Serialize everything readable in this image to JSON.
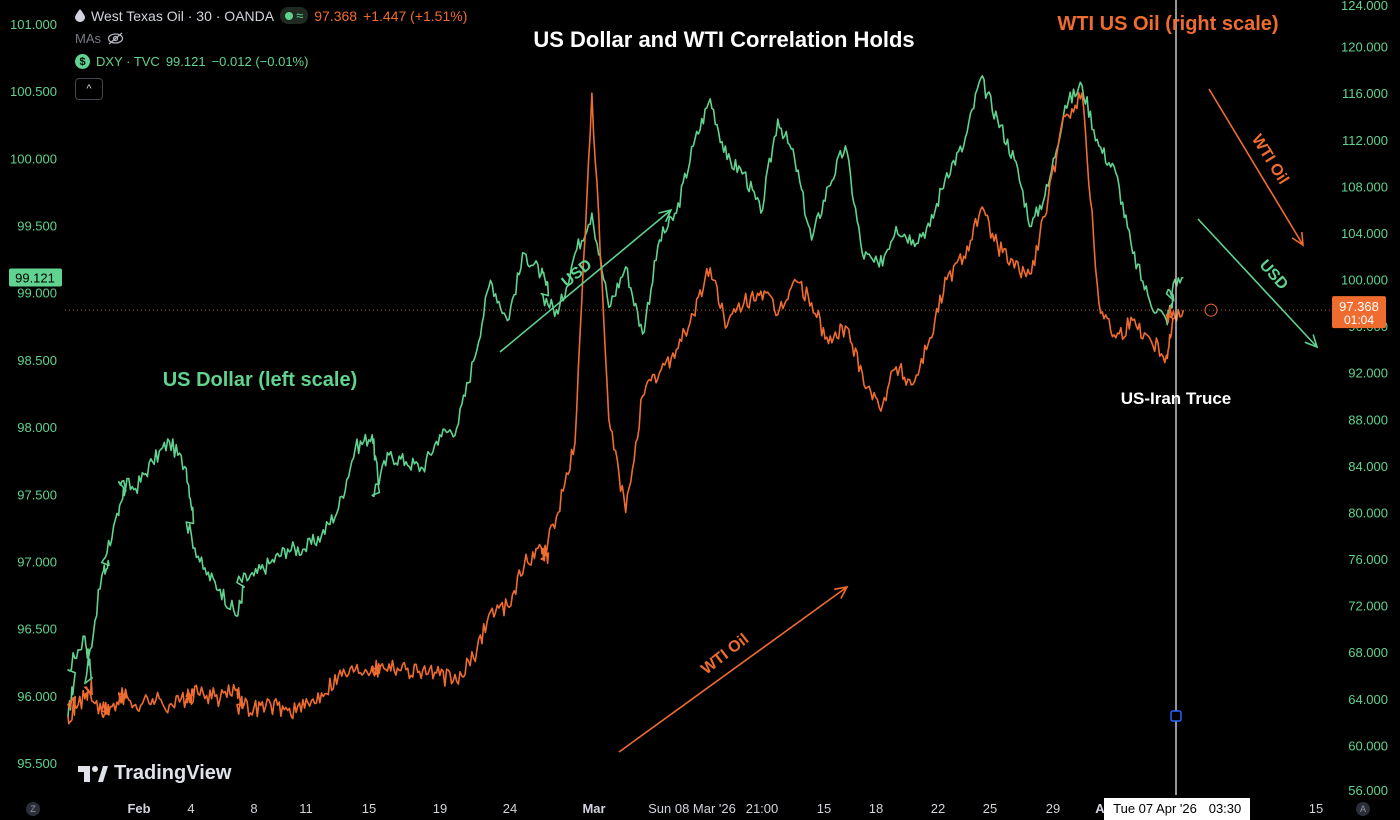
{
  "legend": {
    "main_symbol": "West Texas Oil · 30 · OANDA",
    "main_price": "97.368",
    "main_change": "+1.447 (+1.51%)",
    "mas_label": "MAs",
    "compare_symbol": "DXY · TVC",
    "compare_price": "99.121",
    "compare_change": "−0.012 (−0.01%)",
    "collapse_label": "^"
  },
  "branding": {
    "logo_text": "TradingView"
  },
  "corner_left": "Z",
  "corner_right": "A",
  "colors": {
    "usd": "#5fd38f",
    "wti": "#ef6c30",
    "background": "#000000",
    "text": "#d1d4dc",
    "crosshair": "#c8c8c8"
  },
  "icons": [
    "drop-icon",
    "eye-off-icon",
    "dollar-icon",
    "collapse-icon",
    "tradingview-logo-icon"
  ],
  "chart_data": {
    "type": "line",
    "title": "US Dollar and WTI Correlation Holds",
    "x_axis_ticks": [
      "Feb",
      "4",
      "8",
      "11",
      "15",
      "19",
      "24",
      "Mar",
      "Sun 08 Mar '26",
      "21:00",
      "15",
      "18",
      "22",
      "25",
      "29",
      "A",
      "Tue 07 Apr '26",
      "03:30",
      "15"
    ],
    "left_axis": {
      "label": "",
      "ticks": [
        "101.000",
        "100.500",
        "100.000",
        "99.500",
        "99.000",
        "98.500",
        "98.000",
        "97.500",
        "97.000",
        "96.500",
        "96.000",
        "95.500"
      ],
      "range": [
        95.5,
        101.0
      ]
    },
    "right_axis": {
      "label": "",
      "ticks": [
        "124.000",
        "120.000",
        "116.000",
        "112.000",
        "108.000",
        "104.000",
        "100.000",
        "96.000",
        "92.000",
        "88.000",
        "84.000",
        "80.000",
        "76.000",
        "72.000",
        "68.000",
        "64.000",
        "60.000",
        "56.000"
      ],
      "range": [
        56,
        124
      ]
    },
    "last_value_labels": {
      "usd": "99.121",
      "wti_price": "97.368",
      "wti_countdown": "01:04"
    },
    "annotations": [
      {
        "text": "US Dollar (left scale)",
        "color": "#5fd38f"
      },
      {
        "text": "WTI US Oil (right scale)",
        "color": "#ef6c30"
      },
      {
        "text": "USD",
        "color": "#5fd38f"
      },
      {
        "text": "WTI Oil",
        "color": "#ef6c30"
      },
      {
        "text": "WTI Oil",
        "color": "#ef6c30"
      },
      {
        "text": "USD",
        "color": "#5fd38f"
      },
      {
        "text": "US-Iran Truce",
        "color": "#ffffff"
      }
    ],
    "series": [
      {
        "name": "DXY · TVC",
        "axis": "left",
        "color": "#5fd38f",
        "x": [
          "Feb 1",
          "Feb 1",
          "Feb 2",
          "Feb 2",
          "Feb 3",
          "Feb 3",
          "Feb 4",
          "Feb 4",
          "Feb 5",
          "Feb 6",
          "Feb 7",
          "Feb 8",
          "Feb 8",
          "Feb 9",
          "Feb 10",
          "Feb 11",
          "Feb 11",
          "Feb 12",
          "Feb 13",
          "Feb 14",
          "Feb 15",
          "Feb 16",
          "Feb 17",
          "Feb 18",
          "Feb 19",
          "Feb 19",
          "Feb 20",
          "Feb 21",
          "Feb 22",
          "Feb 23",
          "Feb 24",
          "Feb 25",
          "Feb 26",
          "Feb 27",
          "Feb 28",
          "Mar 1",
          "Mar 1",
          "Mar 2",
          "Mar 3",
          "Mar 4",
          "Mar 5",
          "Mar 6",
          "Mar 7",
          "Mar 8",
          "Mar 9",
          "Mar 10",
          "Mar 11",
          "Mar 12",
          "Mar 13",
          "Mar 14",
          "Mar 15",
          "Mar 16",
          "Mar 17",
          "Mar 18",
          "Mar 19",
          "Mar 20",
          "Mar 21",
          "Mar 22",
          "Mar 23",
          "Mar 24",
          "Mar 25",
          "Mar 26",
          "Mar 27",
          "Mar 28",
          "Mar 29",
          "Mar 30",
          "Mar 31",
          "Apr 1",
          "Apr 2",
          "Apr 3",
          "Apr 4",
          "Apr 5",
          "Apr 6",
          "Apr 7",
          "Apr 7",
          "Apr 8"
        ],
        "values": [
          95.85,
          96.2,
          96.45,
          96.1,
          96.9,
          97.0,
          97.35,
          97.6,
          97.55,
          97.75,
          97.9,
          97.7,
          97.3,
          96.95,
          96.8,
          96.6,
          96.85,
          96.9,
          97.0,
          97.1,
          97.1,
          97.2,
          97.4,
          97.85,
          97.95,
          97.5,
          97.8,
          97.75,
          97.7,
          97.95,
          98.0,
          98.5,
          99.1,
          98.8,
          99.3,
          99.15,
          99.0,
          98.85,
          99.3,
          99.6,
          98.9,
          99.2,
          98.7,
          99.4,
          99.6,
          100.1,
          100.45,
          100.0,
          99.9,
          99.6,
          100.3,
          100.0,
          99.4,
          99.8,
          100.1,
          99.3,
          99.2,
          99.5,
          99.4,
          99.5,
          99.9,
          100.1,
          100.6,
          100.3,
          100.0,
          99.5,
          99.8,
          100.4,
          100.55,
          100.1,
          99.9,
          99.3,
          98.95,
          98.8,
          99.0,
          99.12
        ]
      },
      {
        "name": "West Texas Oil · 30 · OANDA",
        "axis": "right",
        "color": "#ef6c30",
        "x": [
          "Feb 1",
          "Feb 1",
          "Feb 2",
          "Feb 2",
          "Feb 3",
          "Feb 3",
          "Feb 4",
          "Feb 4",
          "Feb 5",
          "Feb 6",
          "Feb 7",
          "Feb 8",
          "Feb 8",
          "Feb 9",
          "Feb 10",
          "Feb 11",
          "Feb 11",
          "Feb 12",
          "Feb 13",
          "Feb 14",
          "Feb 15",
          "Feb 16",
          "Feb 17",
          "Feb 18",
          "Feb 19",
          "Feb 19",
          "Feb 20",
          "Feb 21",
          "Feb 22",
          "Feb 23",
          "Feb 24",
          "Feb 25",
          "Feb 26",
          "Feb 27",
          "Feb 28",
          "Mar 1",
          "Mar 1",
          "Mar 2",
          "Mar 3",
          "Mar 4",
          "Mar 5",
          "Mar 6",
          "Mar 7",
          "Mar 8",
          "Mar 9",
          "Mar 10",
          "Mar 11",
          "Mar 12",
          "Mar 13",
          "Mar 14",
          "Mar 15",
          "Mar 16",
          "Mar 17",
          "Mar 18",
          "Mar 19",
          "Mar 20",
          "Mar 21",
          "Mar 22",
          "Mar 23",
          "Mar 24",
          "Mar 25",
          "Mar 26",
          "Mar 27",
          "Mar 28",
          "Mar 29",
          "Mar 30",
          "Mar 31",
          "Apr 1",
          "Apr 2",
          "Apr 3",
          "Apr 4",
          "Apr 5",
          "Apr 6",
          "Apr 7",
          "Apr 7",
          "Apr 8"
        ],
        "values": [
          62.5,
          63.5,
          64.0,
          65.0,
          62.8,
          63.0,
          63.5,
          64.5,
          63.5,
          64.0,
          63.5,
          64.0,
          64.2,
          64.5,
          64.0,
          64.8,
          63.5,
          63.2,
          63.5,
          63.0,
          63.2,
          64.5,
          66.0,
          66.5,
          66.8,
          66.5,
          67.0,
          66.5,
          66.5,
          66.0,
          65.5,
          67.5,
          71.5,
          72.0,
          75.5,
          77.0,
          76.0,
          80.0,
          86.0,
          116.0,
          88.0,
          80.0,
          90.0,
          92.0,
          94.0,
          97.0,
          101.0,
          96.0,
          98.0,
          99.0,
          97.0,
          100.0,
          98.0,
          94.5,
          96.0,
          92.0,
          89.0,
          92.5,
          91.0,
          95.0,
          100.0,
          102.0,
          106.0,
          103.0,
          101.0,
          100.5,
          107.0,
          114.0,
          116.0,
          98.0,
          95.0,
          96.5,
          95.0,
          93.5,
          97.0,
          97.368
        ]
      }
    ],
    "events": [
      {
        "label": "US-Iran Truce",
        "x": "Apr 7"
      }
    ],
    "reference_line": {
      "value": 97.368,
      "axis": "right"
    },
    "grid": false,
    "legend_position": "top-left"
  }
}
